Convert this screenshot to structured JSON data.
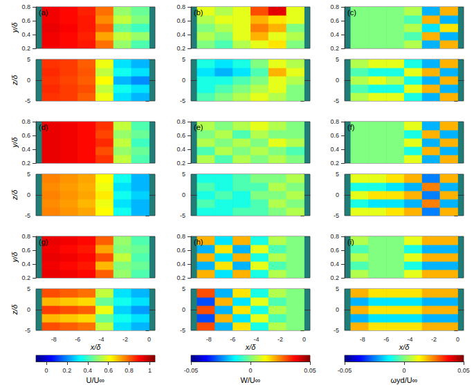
{
  "chart_data": {
    "type": "heatmap",
    "xlabel": "x/δ",
    "ylabel": "y/δ",
    "zlabel": "z/δ",
    "xlim": [
      -9.5,
      0.5
    ],
    "xticks": [
      -8,
      -6,
      -4,
      -2,
      0
    ],
    "ylim": [
      0.2,
      0.8
    ],
    "yticks": [
      0.2,
      0.4,
      0.6,
      0.8
    ],
    "zlim": [
      -5,
      5
    ],
    "zticks": [
      -5,
      0,
      5
    ],
    "x_edges": [
      -9,
      -7.5,
      -6,
      -4.5,
      -3,
      -1.5,
      0
    ],
    "z_edges": [
      -5,
      -3,
      -1,
      1,
      3,
      5
    ],
    "colorbars": [
      {
        "label": "U/U∞",
        "range": [
          -0.1,
          1.05
        ],
        "ticks": [
          0,
          0.2,
          0.4,
          0.6,
          0.8,
          1
        ]
      },
      {
        "label": "W/U∞",
        "range": [
          -0.05,
          0.05
        ],
        "ticks": [
          -0.05,
          0,
          0.05
        ]
      },
      {
        "label": "ωyd/U∞",
        "range": [
          -0.05,
          0.05
        ],
        "ticks": [
          -0.05,
          0,
          0.05
        ]
      }
    ],
    "panels": [
      {
        "label": "(a)",
        "upper": [
          [
            0.92,
            0.9,
            0.88,
            0.78,
            0.5,
            0.42
          ],
          [
            0.92,
            0.9,
            0.87,
            0.72,
            0.55,
            0.5
          ],
          [
            0.93,
            0.91,
            0.88,
            0.8,
            0.45,
            0.4
          ],
          [
            0.92,
            0.9,
            0.88,
            0.75,
            0.55,
            0.48
          ],
          [
            0.92,
            0.9,
            0.87,
            0.78,
            0.5,
            0.45
          ]
        ],
        "lower": [
          [
            0.85,
            0.84,
            0.8,
            0.6,
            0.3,
            0.25
          ],
          [
            0.86,
            0.84,
            0.82,
            0.55,
            0.35,
            0.3
          ],
          [
            0.85,
            0.83,
            0.8,
            0.62,
            0.25,
            0.2
          ],
          [
            0.86,
            0.84,
            0.81,
            0.55,
            0.35,
            0.3
          ],
          [
            0.85,
            0.84,
            0.8,
            0.6,
            0.3,
            0.25
          ]
        ]
      },
      {
        "label": "(b)",
        "upper": [
          [
            0,
            -0.005,
            0.005,
            0.01,
            0.015,
            0
          ],
          [
            0.005,
            0,
            0.01,
            0.02,
            0.01,
            0.005
          ],
          [
            0,
            0.005,
            0.01,
            0.025,
            0.02,
            0
          ],
          [
            0.005,
            0.01,
            0.01,
            0.02,
            0.015,
            0.01
          ],
          [
            0.01,
            0.005,
            0.01,
            0.03,
            0.04,
            0.01
          ]
        ],
        "lower": [
          [
            -0.005,
            0,
            0.005,
            0.01,
            0.005,
            0
          ],
          [
            -0.01,
            -0.005,
            0,
            0.005,
            0.01,
            0
          ],
          [
            -0.01,
            -0.01,
            -0.005,
            0,
            0.01,
            0.005
          ],
          [
            -0.015,
            -0.02,
            -0.015,
            -0.005,
            0.02,
            0.01
          ],
          [
            -0.01,
            -0.015,
            -0.01,
            0,
            0.01,
            0.005
          ]
        ]
      },
      {
        "label": "(c)",
        "upper": [
          [
            0,
            0,
            0,
            0.005,
            -0.02,
            0.02
          ],
          [
            0,
            0,
            0,
            -0.005,
            0.02,
            -0.02
          ],
          [
            0,
            0,
            0,
            0.005,
            -0.015,
            0.015
          ],
          [
            0,
            0,
            0,
            -0.005,
            0.02,
            -0.02
          ],
          [
            0,
            0,
            0,
            0.005,
            -0.02,
            0.02
          ]
        ],
        "lower": [
          [
            0.005,
            0.01,
            0.01,
            -0.01,
            -0.02,
            0.02
          ],
          [
            -0.005,
            -0.01,
            -0.01,
            0.01,
            0.02,
            -0.02
          ],
          [
            0.005,
            0.01,
            0.005,
            -0.01,
            -0.02,
            0.02
          ],
          [
            -0.005,
            -0.01,
            -0.01,
            0.01,
            0.02,
            -0.02
          ],
          [
            0.005,
            0.01,
            0.01,
            -0.01,
            -0.02,
            0.02
          ]
        ]
      },
      {
        "label": "(d)",
        "upper": [
          [
            0.93,
            0.92,
            0.9,
            0.85,
            0.55,
            0.42
          ],
          [
            0.93,
            0.92,
            0.9,
            0.82,
            0.5,
            0.45
          ],
          [
            0.93,
            0.92,
            0.9,
            0.86,
            0.55,
            0.4
          ],
          [
            0.93,
            0.92,
            0.9,
            0.83,
            0.5,
            0.45
          ],
          [
            0.93,
            0.92,
            0.9,
            0.85,
            0.55,
            0.42
          ]
        ],
        "lower": [
          [
            0.76,
            0.74,
            0.72,
            0.62,
            0.35,
            0.25
          ],
          [
            0.75,
            0.73,
            0.7,
            0.6,
            0.3,
            0.25
          ],
          [
            0.76,
            0.74,
            0.72,
            0.64,
            0.35,
            0.28
          ],
          [
            0.75,
            0.73,
            0.71,
            0.6,
            0.3,
            0.25
          ],
          [
            0.76,
            0.74,
            0.72,
            0.62,
            0.35,
            0.25
          ]
        ]
      },
      {
        "label": "(e)",
        "upper": [
          [
            0.005,
            -0.005,
            0.005,
            0,
            0.005,
            0
          ],
          [
            -0.005,
            0.005,
            0,
            0.005,
            0,
            -0.005
          ],
          [
            0.005,
            0,
            0.005,
            0,
            0.01,
            0.005
          ],
          [
            0,
            0.005,
            -0.005,
            0.005,
            0,
            0
          ],
          [
            0.005,
            0,
            0.005,
            0.01,
            0.005,
            0
          ]
        ],
        "lower": [
          [
            -0.01,
            -0.01,
            -0.005,
            -0.005,
            0,
            0.005
          ],
          [
            -0.005,
            -0.01,
            -0.01,
            -0.005,
            0.005,
            0
          ],
          [
            -0.01,
            -0.005,
            -0.01,
            0,
            0,
            0.005
          ],
          [
            -0.005,
            -0.01,
            -0.005,
            -0.005,
            0.005,
            0
          ],
          [
            -0.01,
            -0.01,
            -0.005,
            0,
            0,
            0.005
          ]
        ]
      },
      {
        "label": "(f)",
        "upper": [
          [
            0,
            0,
            0,
            0.01,
            -0.02,
            0.02
          ],
          [
            0,
            0,
            0,
            -0.01,
            0.02,
            -0.02
          ],
          [
            0,
            0,
            0,
            0.01,
            -0.02,
            0.02
          ],
          [
            0,
            0,
            0,
            -0.01,
            0.02,
            -0.02
          ],
          [
            0,
            0,
            0,
            0.01,
            -0.02,
            0.02
          ]
        ],
        "lower": [
          [
            0.01,
            0.01,
            0.015,
            0.02,
            -0.025,
            0.02
          ],
          [
            -0.01,
            -0.015,
            -0.015,
            -0.02,
            0.025,
            -0.02
          ],
          [
            0.01,
            0.015,
            0.015,
            0.02,
            -0.025,
            0.02
          ],
          [
            -0.01,
            -0.01,
            -0.015,
            -0.02,
            0.025,
            -0.02
          ],
          [
            0.01,
            0.01,
            0.015,
            0.02,
            -0.025,
            0.02
          ]
        ]
      },
      {
        "label": "(g)",
        "upper": [
          [
            0.93,
            0.92,
            0.9,
            0.8,
            0.5,
            0.42
          ],
          [
            0.92,
            0.9,
            0.88,
            0.7,
            0.48,
            0.45
          ],
          [
            0.93,
            0.92,
            0.9,
            0.82,
            0.55,
            0.42
          ],
          [
            0.92,
            0.9,
            0.88,
            0.72,
            0.48,
            0.45
          ],
          [
            0.93,
            0.92,
            0.9,
            0.8,
            0.5,
            0.42
          ]
        ],
        "lower": [
          [
            0.82,
            0.8,
            0.78,
            0.55,
            0.3,
            0.25
          ],
          [
            0.7,
            0.68,
            0.66,
            0.45,
            0.35,
            0.3
          ],
          [
            0.84,
            0.82,
            0.8,
            0.6,
            0.28,
            0.22
          ],
          [
            0.7,
            0.68,
            0.66,
            0.45,
            0.35,
            0.3
          ],
          [
            0.82,
            0.8,
            0.78,
            0.55,
            0.3,
            0.25
          ]
        ]
      },
      {
        "label": "(h)",
        "upper": [
          [
            0.02,
            -0.015,
            0.02,
            -0.01,
            0.005,
            0
          ],
          [
            -0.02,
            0.015,
            -0.02,
            0.01,
            -0.005,
            0
          ],
          [
            0.02,
            -0.015,
            0.02,
            -0.01,
            0.005,
            0
          ],
          [
            -0.02,
            0.015,
            -0.02,
            0.01,
            -0.005,
            0
          ],
          [
            0.02,
            -0.015,
            0.02,
            -0.01,
            0.005,
            0
          ]
        ],
        "lower": [
          [
            0.03,
            -0.02,
            0.015,
            -0.01,
            0.005,
            0
          ],
          [
            -0.03,
            0.02,
            -0.015,
            0.01,
            -0.005,
            0
          ],
          [
            0.03,
            -0.02,
            0.015,
            -0.01,
            0.005,
            0
          ],
          [
            -0.03,
            0.02,
            -0.015,
            0.01,
            -0.005,
            0
          ],
          [
            0.03,
            -0.02,
            0.015,
            -0.01,
            0.005,
            0
          ]
        ]
      },
      {
        "label": "(i)",
        "upper": [
          [
            0.005,
            0,
            0,
            0.01,
            0.02,
            0.02
          ],
          [
            -0.005,
            0,
            0,
            -0.01,
            -0.02,
            -0.02
          ],
          [
            0.005,
            0,
            0,
            0.01,
            0.02,
            0.02
          ],
          [
            -0.005,
            0,
            0,
            -0.01,
            -0.02,
            -0.02
          ],
          [
            0.005,
            0,
            0,
            0.01,
            0.02,
            0.02
          ]
        ],
        "lower": [
          [
            0.02,
            0.015,
            0.015,
            0.015,
            0.02,
            0.02
          ],
          [
            -0.02,
            -0.015,
            -0.015,
            -0.015,
            -0.02,
            -0.02
          ],
          [
            0.02,
            0.015,
            0.015,
            0.015,
            0.02,
            0.02
          ],
          [
            -0.02,
            -0.015,
            -0.015,
            -0.015,
            -0.02,
            -0.02
          ],
          [
            0.02,
            0.015,
            0.015,
            0.015,
            0.02,
            0.02
          ]
        ]
      }
    ]
  }
}
